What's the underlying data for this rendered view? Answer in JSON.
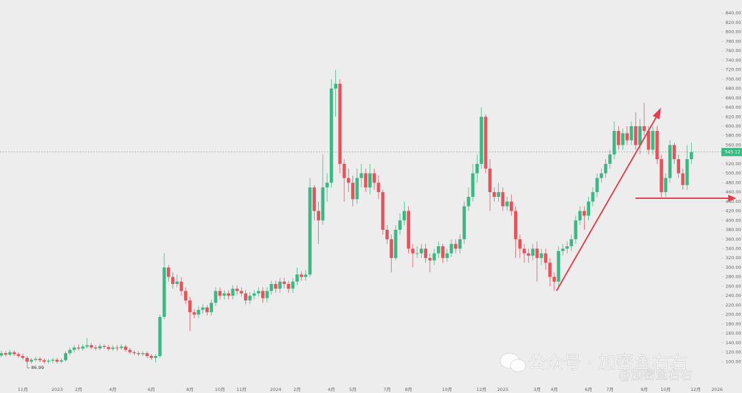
{
  "chart_data": {
    "type": "candlestick",
    "up_color": "#3cb884",
    "down_color": "#e2555d",
    "ylim": [
      48,
      868
    ],
    "yticks": [
      {
        "value": 100,
        "label": "100.00"
      },
      {
        "value": 120,
        "label": "120.00"
      },
      {
        "value": 140,
        "label": "140.00"
      },
      {
        "value": 160,
        "label": "160.00"
      },
      {
        "value": 180,
        "label": "180.00"
      },
      {
        "value": 200,
        "label": "200.00"
      },
      {
        "value": 220,
        "label": "220.00"
      },
      {
        "value": 240,
        "label": "240.00"
      },
      {
        "value": 260,
        "label": "260.00"
      },
      {
        "value": 280,
        "label": "280.00"
      },
      {
        "value": 300,
        "label": "300.00"
      },
      {
        "value": 320,
        "label": "320.00"
      },
      {
        "value": 340,
        "label": "340.00"
      },
      {
        "value": 360,
        "label": "360.00"
      },
      {
        "value": 380,
        "label": "380.00"
      },
      {
        "value": 400,
        "label": "400.00"
      },
      {
        "value": 420,
        "label": "420.00"
      },
      {
        "value": 440,
        "label": "440.00"
      },
      {
        "value": 460,
        "label": "460.00"
      },
      {
        "value": 480,
        "label": "480.00"
      },
      {
        "value": 500,
        "label": "500.00"
      },
      {
        "value": 520,
        "label": "520.00"
      },
      {
        "value": 540,
        "label": "540.00"
      },
      {
        "value": 560,
        "label": "560.00"
      },
      {
        "value": 580,
        "label": "580.00"
      },
      {
        "value": 600,
        "label": "600.00"
      },
      {
        "value": 620,
        "label": "620.00"
      },
      {
        "value": 640,
        "label": "640.00"
      },
      {
        "value": 660,
        "label": "660.00"
      },
      {
        "value": 680,
        "label": "680.00"
      },
      {
        "value": 700,
        "label": "700.00"
      },
      {
        "value": 720,
        "label": "720.00"
      },
      {
        "value": 740,
        "label": "740.00"
      },
      {
        "value": 760,
        "label": "760.00"
      },
      {
        "value": 780,
        "label": "780.00"
      },
      {
        "value": 800,
        "label": "800.00"
      },
      {
        "value": 820,
        "label": "820.00"
      },
      {
        "value": 840,
        "label": "840.00"
      }
    ],
    "categories": [
      null,
      null,
      null,
      null,
      null,
      "11月",
      null,
      null,
      null,
      null,
      null,
      null,
      null,
      "2023",
      null,
      null,
      null,
      null,
      "2月",
      null,
      null,
      null,
      null,
      null,
      null,
      null,
      "4月",
      null,
      null,
      null,
      null,
      null,
      null,
      null,
      null,
      "6月",
      null,
      null,
      null,
      null,
      null,
      null,
      null,
      null,
      "8月",
      null,
      null,
      null,
      null,
      null,
      null,
      "10月",
      null,
      null,
      null,
      null,
      "11月",
      null,
      null,
      null,
      null,
      null,
      null,
      null,
      "2024",
      null,
      null,
      null,
      null,
      "2月",
      null,
      null,
      null,
      null,
      null,
      null,
      null,
      "4月",
      null,
      null,
      null,
      null,
      "5月",
      null,
      null,
      null,
      null,
      null,
      null,
      null,
      "7月",
      null,
      null,
      null,
      null,
      "8月",
      null,
      null,
      null,
      null,
      null,
      null,
      null,
      null,
      "10月",
      null,
      null,
      null,
      null,
      null,
      null,
      null,
      "12月",
      null,
      null,
      null,
      null,
      "2025",
      null,
      null,
      null,
      null,
      null,
      null,
      null,
      "3月",
      null,
      null,
      null,
      "4月",
      null,
      null,
      null,
      null,
      null,
      null,
      null,
      "6月",
      null,
      null,
      null,
      null,
      "7月",
      null,
      null,
      null,
      null,
      null,
      null,
      null,
      "9月",
      null,
      null,
      null,
      null,
      "10月",
      null,
      null,
      null,
      null,
      null,
      null,
      "12月",
      null,
      null,
      null,
      null,
      "2026"
    ],
    "open": [
      113,
      118,
      115,
      120,
      116,
      112,
      108,
      100,
      104,
      106,
      103,
      100,
      102,
      104,
      100,
      103,
      118,
      125,
      130,
      128,
      132,
      135,
      130,
      128,
      133,
      131,
      127,
      130,
      129,
      132,
      125,
      120,
      118,
      116,
      118,
      112,
      108,
      112,
      195,
      300,
      280,
      265,
      270,
      250,
      230,
      205,
      200,
      210,
      215,
      205,
      225,
      250,
      240,
      245,
      240,
      255,
      250,
      245,
      230,
      240,
      245,
      250,
      235,
      250,
      265,
      255,
      270,
      265,
      255,
      270,
      285,
      280,
      285,
      470,
      420,
      400,
      470,
      480,
      680,
      690,
      520,
      490,
      480,
      445,
      490,
      500,
      470,
      500,
      480,
      460,
      380,
      360,
      320,
      380,
      400,
      420,
      340,
      330,
      330,
      340,
      320,
      315,
      330,
      345,
      320,
      330,
      350,
      340,
      360,
      430,
      450,
      500,
      520,
      620,
      510,
      460,
      450,
      460,
      430,
      440,
      420,
      360,
      340,
      330,
      325,
      340,
      320,
      330,
      310,
      280,
      270,
      335,
      340,
      345,
      360,
      400,
      420,
      410,
      440,
      460,
      490,
      500,
      520,
      540,
      590,
      560,
      585,
      570,
      600,
      560,
      600,
      590,
      550,
      590,
      530,
      460,
      490,
      560,
      530,
      500,
      475,
      530,
      null,
      null,
      null,
      null,
      null,
      null
    ],
    "high": [
      123,
      123,
      125,
      124,
      120,
      117,
      112,
      108,
      110,
      110,
      107,
      106,
      108,
      108,
      107,
      122,
      130,
      135,
      136,
      137,
      150,
      140,
      135,
      138,
      137,
      136,
      135,
      135,
      137,
      136,
      129,
      124,
      122,
      122,
      122,
      116,
      116,
      200,
      330,
      305,
      290,
      285,
      280,
      258,
      238,
      212,
      218,
      222,
      220,
      232,
      258,
      258,
      252,
      252,
      262,
      262,
      258,
      252,
      248,
      252,
      258,
      258,
      258,
      272,
      272,
      278,
      278,
      272,
      278,
      300,
      292,
      295,
      490,
      475,
      440,
      540,
      500,
      700,
      720,
      700,
      530,
      510,
      495,
      510,
      520,
      510,
      520,
      510,
      495,
      465,
      390,
      370,
      390,
      415,
      440,
      430,
      350,
      345,
      350,
      350,
      330,
      340,
      355,
      350,
      340,
      360,
      360,
      370,
      440,
      470,
      520,
      540,
      640,
      625,
      530,
      470,
      480,
      470,
      450,
      455,
      430,
      370,
      350,
      340,
      350,
      355,
      340,
      340,
      320,
      290,
      345,
      350,
      355,
      370,
      410,
      430,
      430,
      450,
      470,
      500,
      510,
      530,
      550,
      610,
      600,
      595,
      600,
      610,
      630,
      615,
      650,
      600,
      600,
      600,
      540,
      500,
      570,
      565,
      540,
      510,
      560,
      565,
      null,
      null,
      null,
      null,
      null,
      null
    ],
    "low": [
      109,
      111,
      111,
      112,
      108,
      104,
      86.99,
      96,
      100,
      99,
      96,
      96,
      97,
      96,
      97,
      100,
      114,
      120,
      124,
      124,
      128,
      126,
      124,
      124,
      127,
      123,
      123,
      123,
      125,
      121,
      116,
      114,
      112,
      112,
      108,
      104,
      98,
      108,
      190,
      270,
      255,
      258,
      240,
      222,
      165,
      192,
      192,
      202,
      198,
      198,
      218,
      232,
      232,
      232,
      232,
      242,
      238,
      222,
      222,
      232,
      238,
      225,
      226,
      242,
      246,
      246,
      256,
      246,
      246,
      262,
      272,
      272,
      280,
      400,
      350,
      390,
      440,
      470,
      620,
      500,
      440,
      460,
      430,
      435,
      470,
      460,
      455,
      465,
      445,
      370,
      350,
      290,
      315,
      370,
      390,
      330,
      300,
      320,
      320,
      310,
      290,
      305,
      320,
      310,
      312,
      322,
      330,
      330,
      350,
      420,
      440,
      480,
      510,
      500,
      420,
      440,
      440,
      420,
      420,
      410,
      320,
      320,
      310,
      310,
      315,
      270,
      305,
      295,
      260,
      250,
      260,
      325,
      330,
      335,
      350,
      390,
      380,
      400,
      430,
      450,
      480,
      490,
      510,
      530,
      550,
      550,
      560,
      560,
      550,
      540,
      580,
      540,
      540,
      520,
      450,
      450,
      480,
      520,
      490,
      465,
      465,
      520,
      null,
      null,
      null,
      null,
      null,
      null
    ],
    "close": [
      118,
      115,
      120,
      116,
      112,
      108,
      100,
      104,
      106,
      103,
      100,
      102,
      104,
      100,
      103,
      118,
      125,
      130,
      128,
      132,
      135,
      130,
      128,
      133,
      131,
      127,
      130,
      129,
      132,
      125,
      120,
      118,
      116,
      118,
      112,
      108,
      112,
      195,
      300,
      280,
      265,
      270,
      250,
      230,
      205,
      200,
      210,
      215,
      205,
      225,
      250,
      240,
      245,
      240,
      255,
      250,
      245,
      230,
      240,
      245,
      250,
      235,
      250,
      265,
      255,
      270,
      265,
      255,
      270,
      285,
      280,
      285,
      470,
      420,
      400,
      470,
      480,
      680,
      690,
      520,
      490,
      480,
      445,
      490,
      500,
      470,
      500,
      480,
      460,
      380,
      360,
      320,
      380,
      400,
      420,
      340,
      330,
      330,
      340,
      320,
      315,
      330,
      345,
      320,
      330,
      350,
      340,
      360,
      430,
      450,
      500,
      520,
      620,
      510,
      460,
      450,
      460,
      430,
      440,
      420,
      360,
      340,
      330,
      325,
      340,
      320,
      330,
      310,
      280,
      270,
      335,
      340,
      345,
      360,
      400,
      420,
      410,
      440,
      460,
      490,
      500,
      520,
      540,
      590,
      560,
      585,
      570,
      600,
      560,
      600,
      590,
      550,
      590,
      530,
      460,
      490,
      560,
      530,
      500,
      475,
      530,
      545.12,
      null,
      null,
      null,
      null,
      null,
      null
    ],
    "watermark": {
      "title": "公众号 · 加密鱼右右",
      "handle": "@加密鱼右右"
    }
  }
}
